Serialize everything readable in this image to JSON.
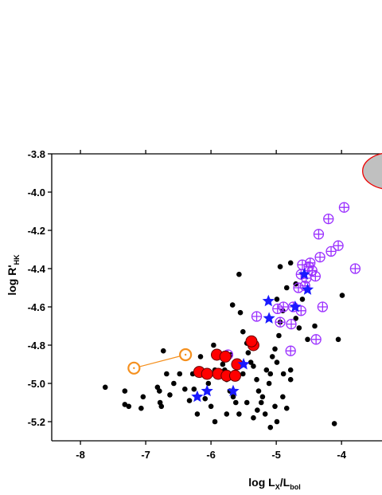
{
  "chart_data": {
    "type": "scatter",
    "xlabel": [
      "log L",
      "X",
      "/L",
      "bol"
    ],
    "ylabel": [
      "log R'",
      "HK"
    ],
    "xlim": [
      -8.44,
      -3.38
    ],
    "ylim": [
      -5.3,
      -3.8
    ],
    "xticks": [
      -8,
      -7,
      -6,
      -5,
      -4
    ],
    "yticks": [
      -3.8,
      {
        "value": -4,
        "label": "-4.0"
      },
      -4.2,
      -4.4,
      -4.6,
      -4.8,
      {
        "value": -5,
        "label": "-5.0"
      },
      -5.2
    ],
    "series": [
      {
        "marker": "dot",
        "color": "#000000",
        "x": [
          -7.62,
          -7.32,
          -7.32,
          -7.26,
          -7.04,
          -7.07,
          -6.82,
          -6.79,
          -6.78,
          -6.76,
          -6.73,
          -6.57,
          -6.68,
          -6.63,
          -6.48,
          -6.4,
          -6.28,
          -6.26,
          -6.16,
          -6.12,
          -6.04,
          -5.96,
          -5.94,
          -5.82,
          -5.76,
          -5.71,
          -5.66,
          -5.62,
          -5.57,
          -5.67,
          -5.55,
          -5.57,
          -5.51,
          -5.45,
          -5.43,
          -5.39,
          -5.35,
          -5.3,
          -5.27,
          -5.23,
          -5.17,
          -5.11,
          -5.15,
          -5.09,
          -5.06,
          -5.02,
          -4.96,
          -4.94,
          -4.9,
          -4.99,
          -4.84,
          -4.94,
          -4.78,
          -4.7,
          -4.6,
          -4.99,
          -4.9,
          -4.84,
          -4.99,
          -5.09,
          -5.45,
          -5.51,
          -5.7,
          -5.79,
          -6.0,
          -6.09,
          -6.33,
          -6.21,
          -5.94,
          -5.76,
          -5.21,
          -5.02,
          -4.89,
          -4.78,
          -4.11,
          -3.99,
          -4.05,
          -4.52,
          -4.41,
          -4.7,
          -4.65,
          -5.35,
          -5.29,
          -4.78
        ],
        "values": [
          -5.02,
          -5.04,
          -5.11,
          -5.12,
          -5.07,
          -5.13,
          -5.02,
          -5.04,
          -5.1,
          -5.12,
          -4.83,
          -5.0,
          -4.95,
          -5.06,
          -4.95,
          -5.03,
          -4.95,
          -5.03,
          -4.86,
          -4.94,
          -5.0,
          -4.8,
          -4.93,
          -4.9,
          -4.98,
          -5.04,
          -5.07,
          -5.1,
          -5.16,
          -4.59,
          -4.63,
          -4.43,
          -4.73,
          -4.79,
          -4.84,
          -4.89,
          -4.91,
          -4.98,
          -5.04,
          -5.1,
          -5.16,
          -5.0,
          -4.93,
          -4.95,
          -4.86,
          -4.82,
          -4.75,
          -4.68,
          -4.62,
          -4.56,
          -4.5,
          -4.39,
          -4.37,
          -4.48,
          -4.56,
          -4.89,
          -5.07,
          -5.13,
          -5.2,
          -5.23,
          -5.1,
          -4.95,
          -4.85,
          -4.93,
          -5.12,
          -5.08,
          -5.09,
          -5.16,
          -5.2,
          -5.16,
          -5.07,
          -5.12,
          -4.95,
          -4.98,
          -5.21,
          -4.54,
          -4.77,
          -4.77,
          -4.7,
          -4.66,
          -4.71,
          -5.18,
          -5.14,
          -4.93
        ]
      },
      {
        "marker": "plus",
        "color": "#9b30ff",
        "x": [
          -3.96,
          -4.2,
          -4.35,
          -4.05,
          -4.16,
          -4.33,
          -3.79,
          -4.6,
          -4.45,
          -4.54,
          -4.62,
          -4.4,
          -4.56,
          -4.66,
          -4.29,
          -4.62,
          -4.74,
          -4.89,
          -4.98,
          -5.3,
          -4.77,
          -4.94,
          -4.39,
          -4.78,
          -5.74,
          -4.5,
          -4.48
        ],
        "values": [
          -4.08,
          -4.14,
          -4.22,
          -4.28,
          -4.31,
          -4.34,
          -4.4,
          -4.38,
          -4.41,
          -4.45,
          -4.43,
          -4.44,
          -4.49,
          -4.5,
          -4.6,
          -4.62,
          -4.6,
          -4.6,
          -4.61,
          -4.65,
          -4.69,
          -4.68,
          -4.77,
          -4.83,
          -4.85,
          -4.39,
          -4.37
        ]
      },
      {
        "marker": "circle",
        "color": "#ff0000",
        "x": [
          -5.91,
          -5.78,
          -6.18,
          -6.06,
          -5.89,
          -5.76,
          -5.63,
          -5.6,
          -5.35,
          -5.38
        ],
        "values": [
          -4.85,
          -4.86,
          -4.94,
          -4.95,
          -4.95,
          -4.96,
          -4.96,
          -4.9,
          -4.8,
          -4.78
        ]
      },
      {
        "marker": "star",
        "color": "#1a1aff",
        "x": [
          -6.21,
          -6.06,
          -5.66,
          -5.5,
          -5.11,
          -5.12,
          -4.71,
          -4.52,
          -4.57
        ],
        "values": [
          -5.07,
          -5.04,
          -5.04,
          -4.9,
          -4.66,
          -4.57,
          -4.6,
          -4.51,
          -4.43
        ]
      },
      {
        "marker": "ring",
        "color": "#f5901e",
        "line": true,
        "x": [
          -7.18,
          -6.39
        ],
        "values": [
          -4.92,
          -4.85
        ]
      },
      {
        "marker": "ellipse",
        "color": "#c0c0c0",
        "x": [
          -3.25
        ],
        "values": [
          -3.89
        ]
      }
    ]
  }
}
